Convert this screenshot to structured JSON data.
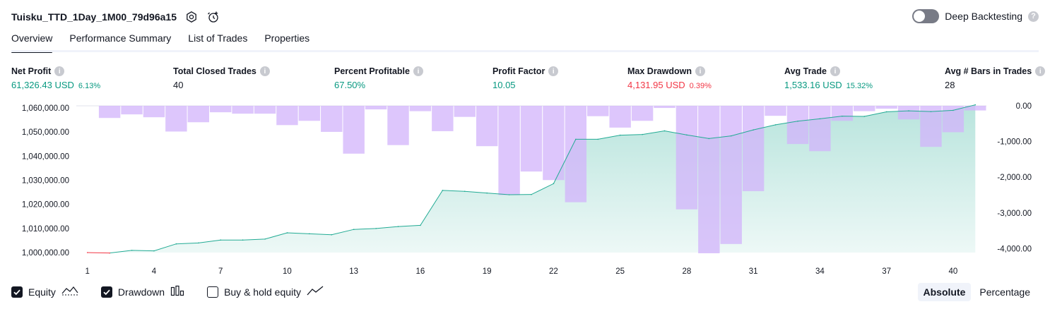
{
  "header": {
    "strategy_name": "Tuisku_TTD_1Day_1M00_79d96a15",
    "deep_backtesting_label": "Deep Backtesting"
  },
  "tabs": [
    "Overview",
    "Performance Summary",
    "List of Trades",
    "Properties"
  ],
  "metrics": [
    {
      "label": "Net Profit",
      "value": "61,326.43 USD",
      "pct": "6.13%",
      "tone": "pos"
    },
    {
      "label": "Total Closed Trades",
      "value": "40",
      "pct": "",
      "tone": "neu"
    },
    {
      "label": "Percent Profitable",
      "value": "67.50%",
      "pct": "",
      "tone": "pos"
    },
    {
      "label": "Profit Factor",
      "value": "10.05",
      "pct": "",
      "tone": "pos"
    },
    {
      "label": "Max Drawdown",
      "value": "4,131.95 USD",
      "pct": "0.39%",
      "tone": "neg"
    },
    {
      "label": "Avg Trade",
      "value": "1,533.16 USD",
      "pct": "15.32%",
      "tone": "pos"
    },
    {
      "label": "Avg # Bars in Trades",
      "value": "28",
      "pct": "",
      "tone": "neu"
    }
  ],
  "legend": {
    "equity": "Equity",
    "drawdown": "Drawdown",
    "buy_hold": "Buy & hold equity"
  },
  "mode": {
    "absolute": "Absolute",
    "percentage": "Percentage"
  },
  "colors": {
    "equity_line": "#22ab94",
    "equity_fill": "#22ab94",
    "equity_negative": "#f23645",
    "drawdown_bar": "#d1b3fb",
    "text_muted": "#131722"
  },
  "chart_data": {
    "type": "area",
    "x_ticks": [
      1,
      4,
      7,
      10,
      13,
      16,
      19,
      22,
      25,
      28,
      31,
      34,
      37,
      40
    ],
    "left_axis": {
      "ticks": [
        "1,060,000.00",
        "1,050,000.00",
        "1,040,000.00",
        "1,030,000.00",
        "1,020,000.00",
        "1,010,000.00",
        "1,000,000.00"
      ],
      "ylim": [
        1000000,
        1060000
      ]
    },
    "right_axis": {
      "ticks": [
        "0.00",
        "-1,000.00",
        "-2,000.00",
        "-3,000.00",
        "-4,000.00"
      ],
      "ylim": [
        -4150,
        0
      ]
    },
    "series": [
      {
        "name": "Equity",
        "x": [
          1,
          2,
          3,
          4,
          5,
          6,
          7,
          8,
          9,
          10,
          11,
          12,
          13,
          14,
          15,
          16,
          17,
          18,
          19,
          20,
          21,
          22,
          23,
          24,
          25,
          26,
          27,
          28,
          29,
          30,
          31,
          32,
          33,
          34,
          35,
          36,
          37,
          38,
          39,
          40,
          41
        ],
        "values": [
          1000000,
          999800,
          1000900,
          1000700,
          1003600,
          1004000,
          1005200,
          1005200,
          1005600,
          1008200,
          1007800,
          1007400,
          1009600,
          1010000,
          1010800,
          1011300,
          1025800,
          1025400,
          1024700,
          1024000,
          1024100,
          1028600,
          1047000,
          1047000,
          1048700,
          1049000,
          1050500,
          1048800,
          1047300,
          1048400,
          1050900,
          1053000,
          1054500,
          1055500,
          1056600,
          1056500,
          1058400,
          1058800,
          1058500,
          1059000,
          1061300
        ]
      },
      {
        "name": "Drawdown",
        "x": [
          1,
          2,
          3,
          4,
          5,
          6,
          7,
          8,
          9,
          10,
          11,
          12,
          13,
          14,
          15,
          16,
          17,
          18,
          19,
          20,
          21,
          22,
          23,
          24,
          25,
          26,
          27,
          28,
          29,
          30,
          31,
          32,
          33,
          34,
          35,
          36,
          37,
          38,
          39,
          40,
          41
        ],
        "values": [
          0,
          -340,
          -240,
          -320,
          -720,
          -460,
          -180,
          -220,
          -220,
          -540,
          -420,
          -730,
          -1340,
          -100,
          -1100,
          -150,
          -710,
          -310,
          -1130,
          -2500,
          -1840,
          -2080,
          -2700,
          -290,
          -610,
          -420,
          -60,
          -2900,
          -4130,
          -3870,
          -2390,
          -280,
          -1070,
          -1270,
          -420,
          -150,
          -80,
          -380,
          -1150,
          -740,
          -130
        ]
      }
    ]
  }
}
